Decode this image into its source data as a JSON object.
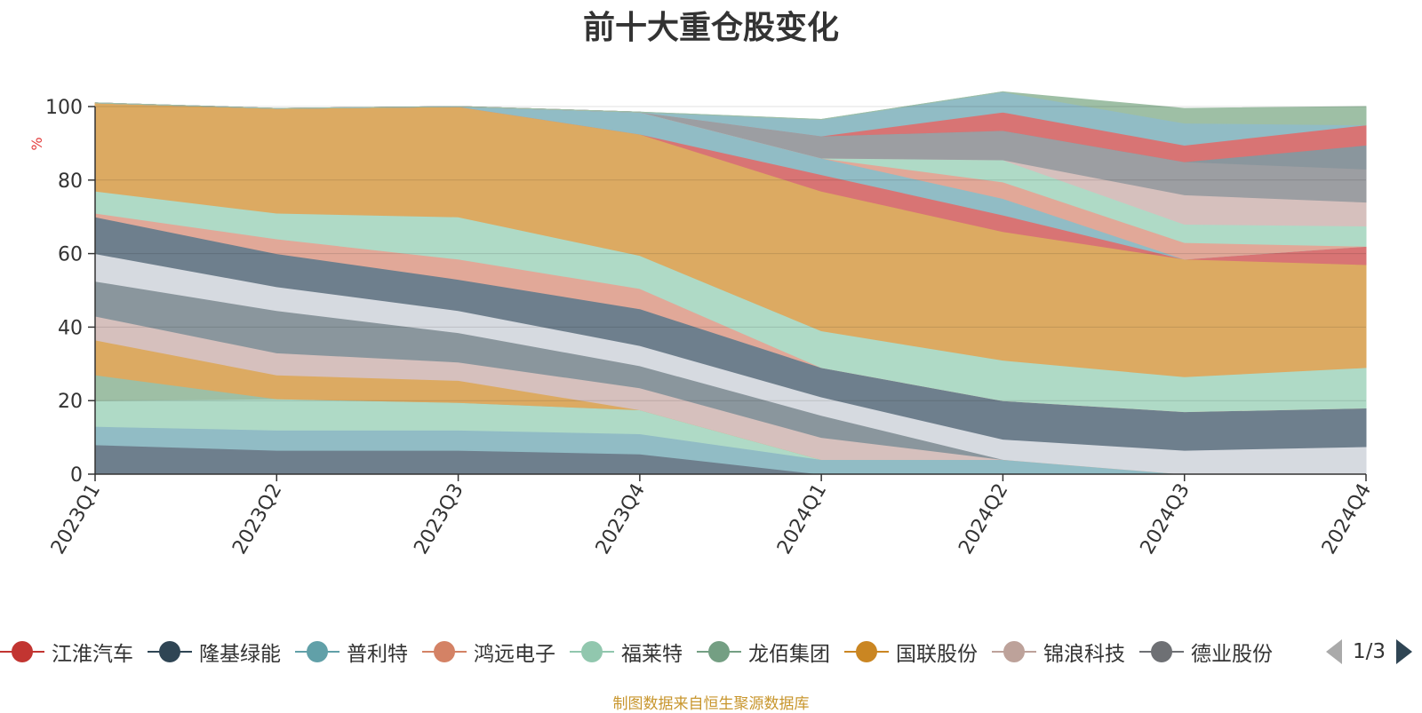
{
  "footer": "制图数据来自恒生聚源数据库",
  "legend": {
    "page_text": "1/3"
  },
  "chart_data": {
    "type": "area",
    "stacked": true,
    "title": "前十大重仓股变化",
    "xlabel": "",
    "ylabel": "%",
    "ylim": [
      0,
      100
    ],
    "yticks": [
      0,
      20,
      40,
      60,
      80,
      100
    ],
    "grid": true,
    "legend_position": "bottom",
    "categories": [
      "2023Q1",
      "2023Q2",
      "2023Q3",
      "2023Q4",
      "2024Q1",
      "2024Q2",
      "2024Q3",
      "2024Q4"
    ],
    "series": [
      {
        "name": "",
        "color": "#6e7f8d",
        "values": [
          8,
          6.5,
          6.5,
          5.5,
          0,
          0,
          0,
          0
        ]
      },
      {
        "name": "",
        "color": "#91bcc5",
        "values": [
          5,
          5.5,
          5.5,
          5.5,
          4,
          4,
          0,
          0
        ]
      },
      {
        "name": "",
        "color": "#afdac6",
        "values": [
          7,
          8.5,
          7.5,
          6.5,
          0,
          0,
          0,
          0
        ]
      },
      {
        "name": "",
        "color": "#9ebfa5",
        "values": [
          7,
          0,
          0,
          0,
          0,
          0,
          0,
          0
        ]
      },
      {
        "name": "",
        "color": "#dcaa62",
        "values": [
          9.5,
          6.5,
          6,
          0,
          0,
          0,
          0,
          0
        ]
      },
      {
        "name": "",
        "color": "#d6c0bd",
        "values": [
          6.5,
          6,
          5,
          6,
          6,
          0,
          0,
          0
        ]
      },
      {
        "name": "",
        "color": "#8a969d",
        "values": [
          9.5,
          11.5,
          8,
          6,
          6,
          0,
          0,
          0
        ]
      },
      {
        "name": "",
        "color": "#d6dae0",
        "values": [
          7.5,
          6.5,
          6,
          5.5,
          5,
          5.5,
          6.5,
          7.5
        ]
      },
      {
        "name": "",
        "color": "#6e7f8d",
        "values": [
          10,
          9,
          8.5,
          10,
          8,
          10.5,
          10.5,
          10.5
        ]
      },
      {
        "name": "",
        "color": "#e1a898",
        "values": [
          1,
          4,
          5.5,
          5.5,
          0,
          0,
          0,
          0
        ]
      },
      {
        "name": "",
        "color": "#afdac6",
        "values": [
          6,
          7,
          11.5,
          9,
          10,
          11,
          9.5,
          11
        ]
      },
      {
        "name": "",
        "color": "#dcaa62",
        "values": [
          24,
          28.5,
          30,
          33,
          38,
          35,
          32,
          28
        ]
      },
      {
        "name": "江淮汽车",
        "color": "#d87474",
        "values": [
          0,
          0,
          0,
          0,
          4.5,
          4.5,
          0,
          5
        ]
      },
      {
        "name": "普利特",
        "color": "#91bcc5",
        "values": [
          0,
          0,
          0,
          6,
          4.5,
          4.5,
          0,
          0
        ]
      },
      {
        "name": "鸿远电子",
        "color": "#e1a898",
        "values": [
          0,
          0,
          0,
          0,
          0,
          4.5,
          4.5,
          0
        ]
      },
      {
        "name": "福莱特",
        "color": "#afdac6",
        "values": [
          0,
          0,
          0,
          0,
          0,
          6,
          5,
          5.5
        ]
      },
      {
        "name": "锦浪科技",
        "color": "#d6c0bd",
        "values": [
          0,
          0,
          0,
          0,
          0,
          0,
          8,
          6.5
        ]
      },
      {
        "name": "",
        "color": "#9c9ea2",
        "values": [
          0,
          0,
          0,
          0,
          6,
          8,
          9,
          9
        ]
      },
      {
        "name": "",
        "color": "#8a969d",
        "values": [
          0,
          0,
          0,
          0,
          0,
          0,
          0,
          6.5
        ]
      },
      {
        "name": "",
        "color": "#d87474",
        "values": [
          0,
          0,
          0,
          0,
          0,
          5,
          4.5,
          5.5
        ]
      },
      {
        "name": "",
        "color": "#91bcc5",
        "values": [
          0,
          0,
          0,
          0,
          4.5,
          5.5,
          6,
          0
        ]
      },
      {
        "name": "",
        "color": "#9ebfa5",
        "values": [
          0,
          0,
          0,
          0,
          0,
          0,
          4,
          5
        ]
      }
    ],
    "legend_items": [
      {
        "name": "江淮汽车",
        "color": "#c23531"
      },
      {
        "name": "隆基绿能",
        "color": "#2f4554"
      },
      {
        "name": "普利特",
        "color": "#61a0a8"
      },
      {
        "name": "鸿远电子",
        "color": "#d48265"
      },
      {
        "name": "福莱特",
        "color": "#91c7ae"
      },
      {
        "name": "龙佰集团",
        "color": "#749f83"
      },
      {
        "name": "国联股份",
        "color": "#ca8622"
      },
      {
        "name": "锦浪科技",
        "color": "#bda29a"
      },
      {
        "name": "德业股份",
        "color": "#6e7074"
      }
    ]
  }
}
